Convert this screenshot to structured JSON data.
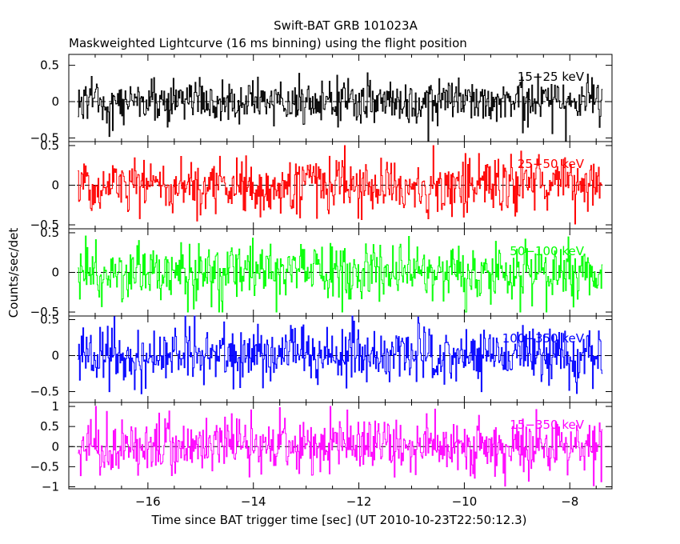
{
  "title": "Swift-BAT GRB 101023A",
  "subtitle": "Maskweighted Lightcurve (16 ms binning) using the flight position",
  "ylabel": "Counts/sec/det",
  "xlabel": "Time since BAT trigger time [sec] (UT 2010-10-23T22:50:12.3)",
  "chart_data": {
    "type": "line",
    "xlim": [
      -17.5,
      -7.2
    ],
    "x_ticks": [
      -16,
      -14,
      -12,
      -10,
      -8
    ],
    "x_tick_labels": [
      "−16",
      "−14",
      "−12",
      "−10",
      "−8"
    ],
    "x_start": -17.33,
    "x_end": -7.38,
    "bin_size": 0.016,
    "grid": false,
    "legend": "in-panel labels, top-right",
    "panels": [
      {
        "name": "15−25 keV",
        "color": "#000000",
        "ylim": [
          -0.55,
          0.65
        ],
        "y_ticks": [
          -0.5,
          0,
          0.5
        ],
        "y_tick_labels": [
          "−0.5",
          "0",
          "0.5"
        ],
        "amplitude": 0.16,
        "peak": 0.55
      },
      {
        "name": "25−50 keV",
        "color": "#ff0000",
        "ylim": [
          -0.55,
          0.55
        ],
        "y_ticks": [
          -0.5,
          0,
          0.5
        ],
        "y_tick_labels": [
          "−0.5",
          "0",
          "0.5"
        ],
        "amplitude": 0.18,
        "peak": 0.5
      },
      {
        "name": "50−100 keV",
        "color": "#00ff00",
        "ylim": [
          -0.55,
          0.55
        ],
        "y_ticks": [
          -0.5,
          0,
          0.5
        ],
        "y_tick_labels": [
          "−0.5",
          "0",
          "0.5"
        ],
        "amplitude": 0.18,
        "peak": 0.5
      },
      {
        "name": "100−350 keV",
        "color": "#0000ff",
        "ylim": [
          -0.65,
          0.55
        ],
        "y_ticks": [
          -0.5,
          0,
          0.5
        ],
        "y_tick_labels": [
          "−0.5",
          "0",
          "0.5"
        ],
        "amplitude": 0.2,
        "peak": 0.55
      },
      {
        "name": "15−350 keV",
        "color": "#ff00ff",
        "ylim": [
          -1.05,
          1.1
        ],
        "y_ticks": [
          -1,
          -0.5,
          0,
          0.5,
          1
        ],
        "y_tick_labels": [
          "−1",
          "−0.5",
          "0",
          "0.5",
          "1"
        ],
        "amplitude": 0.35,
        "peak": 1.0
      }
    ]
  }
}
